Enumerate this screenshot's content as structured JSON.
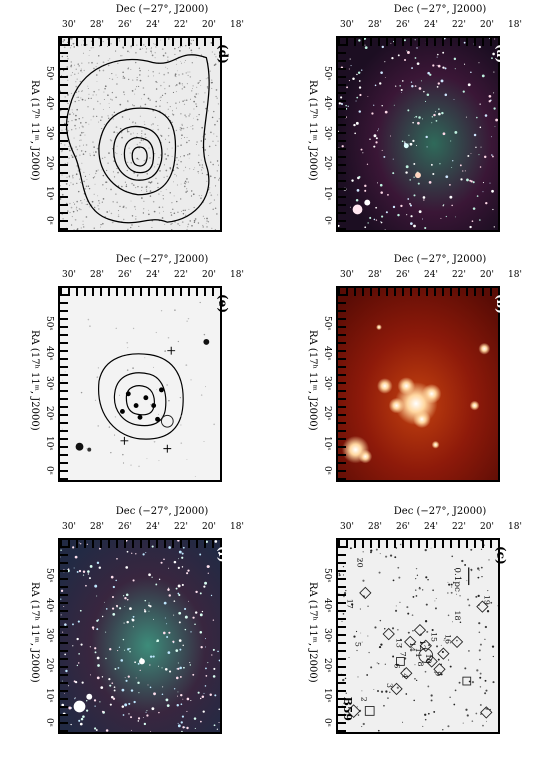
{
  "dec_axis_label": "Dec (−27°, J2000)",
  "ra_axis_label": "RA (17ʰ 11ᵐ, J2000)",
  "dec_ticks": [
    "30'",
    "28'",
    "26'",
    "24'",
    "22'",
    "20'",
    "18'"
  ],
  "ra_ticks": [
    "50ˢ",
    "40ˢ",
    "30ˢ",
    "20ˢ",
    "10ˢ",
    "0ˢ"
  ],
  "panels": {
    "a": {
      "tag": "(a)"
    },
    "b": {
      "tag": "(b)"
    },
    "c": {
      "tag": "(c)",
      "object_name": "B59",
      "scale_bar": "0.1pc",
      "source_numbers": [
        "1",
        "2",
        "3",
        "4",
        "5",
        "6",
        "7",
        "8",
        "9",
        "10",
        "11",
        "12",
        "13",
        "14",
        "15",
        "16",
        "17",
        "18",
        "19",
        "20"
      ]
    },
    "d": {
      "tag": "(d)"
    },
    "e": {
      "tag": "(e)"
    },
    "f": {
      "tag": "(f)"
    }
  },
  "colors": {
    "frame": "#000000",
    "panel_b_bg": "#7a1208",
    "panel_b_glow": "#ffd7a0",
    "panel_a_bg": "#2a1428",
    "panel_f_bg": "#27304a"
  }
}
